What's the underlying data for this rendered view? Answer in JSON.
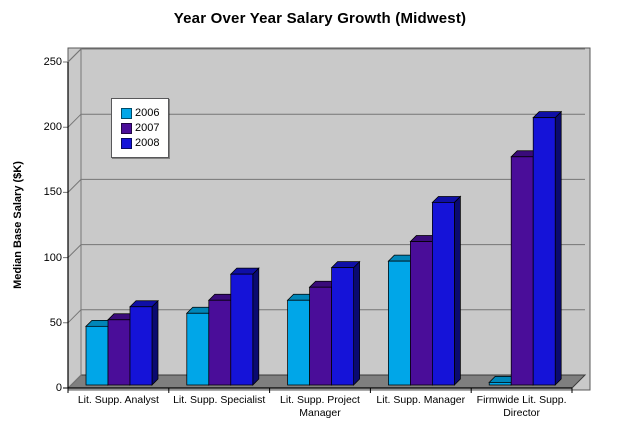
{
  "title": "Year Over Year Salary Growth (Midwest)",
  "chart_data": {
    "type": "bar",
    "style": "3d-clustered",
    "title": "Year Over Year Salary Growth (Midwest)",
    "xlabel": "",
    "ylabel": "Median Base Salary ($K)",
    "ylim": [
      0,
      250
    ],
    "ytick_interval": 50,
    "yticks": [
      "0",
      "50",
      "100",
      "150",
      "200",
      "250"
    ],
    "grid": true,
    "legend_position": "top-left-inside",
    "categories": [
      "Lit. Supp. Analyst",
      "Lit. Supp. Specialist",
      "Lit. Supp. Project Manager",
      "Lit. Supp. Manager",
      "Firmwide Lit. Supp. Director"
    ],
    "series": [
      {
        "name": "2006",
        "values": [
          45,
          55,
          65,
          95,
          2
        ],
        "color": "#00A6E8",
        "top_color": "#0086B8",
        "side_color": "#006D96"
      },
      {
        "name": "2007",
        "values": [
          50,
          65,
          75,
          110,
          175
        ],
        "color": "#4A0D99",
        "top_color": "#3A0B7A",
        "side_color": "#2C0760"
      },
      {
        "name": "2008",
        "values": [
          60,
          85,
          90,
          140,
          205
        ],
        "color": "#1513D8",
        "top_color": "#0F0FA6",
        "side_color": "#0A0A70"
      }
    ],
    "colors": {
      "background": "#FFFFFF",
      "wall": "#C9C9C9",
      "wall_border": "#595959",
      "gridline": "#767676",
      "floor": "#7F7F7F",
      "floor_border": "#3A3A3A",
      "axis": "#000000"
    }
  }
}
